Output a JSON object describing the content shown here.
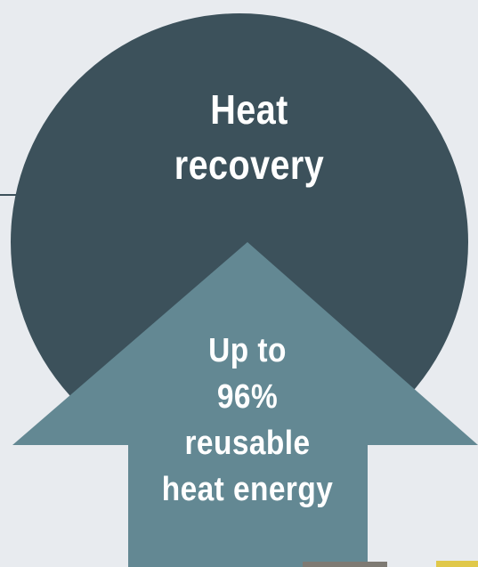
{
  "headline": {
    "line1": "Heat",
    "line2": "recovery"
  },
  "arrow_text": {
    "line1": "Up to",
    "line2": "96%",
    "line3": "reusable",
    "line4": "heat energy"
  },
  "colors": {
    "background": "#e8ebef",
    "circle": "#3c515b",
    "arrow": "#638893",
    "connector_line": "#3c515b",
    "text": "#ffffff"
  }
}
